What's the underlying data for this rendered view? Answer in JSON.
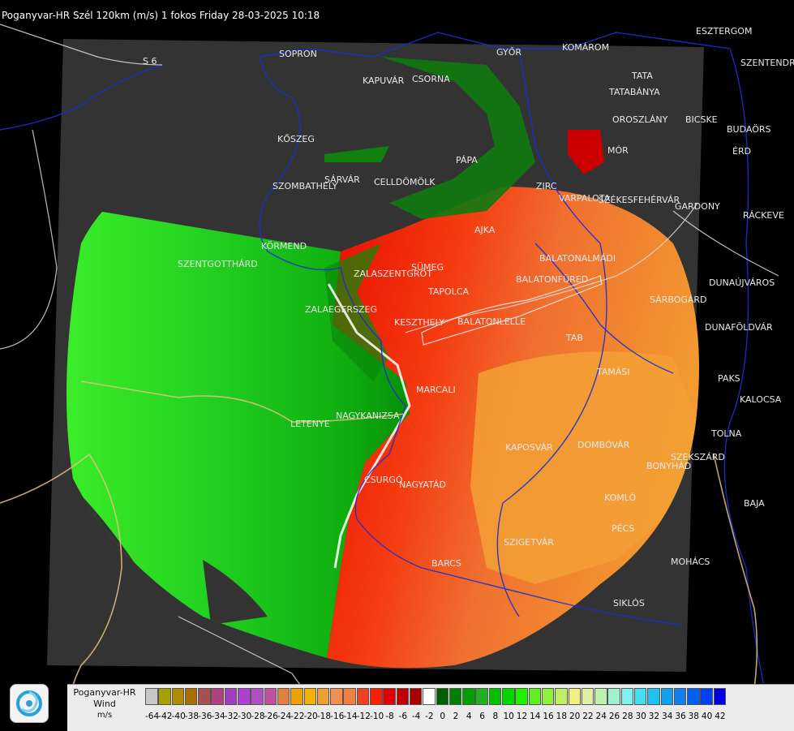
{
  "header": {
    "title": "Poganyvar-HR Szél 120km (m/s) 1 fokos Friday 28-03-2025 10:18"
  },
  "road_label": "S 6",
  "cities": [
    {
      "name": "SOPRON"
    },
    {
      "name": "KAPUVÁR"
    },
    {
      "name": "CSORNA"
    },
    {
      "name": "GYŐR"
    },
    {
      "name": "KOMÁROM"
    },
    {
      "name": "TATA"
    },
    {
      "name": "TATABÁNYA"
    },
    {
      "name": "ESZTERGOM"
    },
    {
      "name": "SZENTENDRE"
    },
    {
      "name": "BUDAÖRS"
    },
    {
      "name": "ÉRD"
    },
    {
      "name": "PÁPA"
    },
    {
      "name": "ZIRC"
    },
    {
      "name": "OROSZLÁNY"
    },
    {
      "name": "BICSKE"
    },
    {
      "name": "MÓR"
    },
    {
      "name": "KŐSZEG"
    },
    {
      "name": "SÁRVÁR"
    },
    {
      "name": "CELLDÖMÖLK"
    },
    {
      "name": "SZOMBATHELY"
    },
    {
      "name": "VARPALOTA"
    },
    {
      "name": "SZÉKESFEHÉRVÁR"
    },
    {
      "name": "GARDONY"
    },
    {
      "name": "RÁCKEVE"
    },
    {
      "name": "AJKA"
    },
    {
      "name": "KÖRMEND"
    },
    {
      "name": "SZENTGOTTHÁRD"
    },
    {
      "name": "ZALAEGERSZEG"
    },
    {
      "name": "ZALASZENTGRÓT"
    },
    {
      "name": "SÜMEG"
    },
    {
      "name": "TAPOLCA"
    },
    {
      "name": "BALATONALMÁDI"
    },
    {
      "name": "BALATONFÜRED"
    },
    {
      "name": "SÁRBOGÁRD"
    },
    {
      "name": "DUNAÚJVÁROS"
    },
    {
      "name": "DUNAFÖLDVÁR"
    },
    {
      "name": "KESZTHELY"
    },
    {
      "name": "BALATONLELLE"
    },
    {
      "name": "TAB"
    },
    {
      "name": "PAKS"
    },
    {
      "name": "TAMÁSI"
    },
    {
      "name": "KALOCSA"
    },
    {
      "name": "MARCALI"
    },
    {
      "name": "LETENYE"
    },
    {
      "name": "NAGYKANIZSA"
    },
    {
      "name": "TOLNA"
    },
    {
      "name": "KAPOSVÁR"
    },
    {
      "name": "DOMBÓVÁR"
    },
    {
      "name": "SZEKSZÁRD"
    },
    {
      "name": "BONYHÁD"
    },
    {
      "name": "CSURGÓ"
    },
    {
      "name": "NAGYATÁD"
    },
    {
      "name": "BAJA"
    },
    {
      "name": "KOMLÓ"
    },
    {
      "name": "PÉCS"
    },
    {
      "name": "SZIGETVÁR"
    },
    {
      "name": "BARCS"
    },
    {
      "name": "MOHÁCS"
    },
    {
      "name": "SIKLÓS"
    }
  ],
  "legend": {
    "title_line1": "Poganyvar-HR",
    "title_line2": "Wind",
    "unit": "m/s",
    "ticks": [
      "-64",
      "-42",
      "-40",
      "-38",
      "-36",
      "-34",
      "-32",
      "-30",
      "-28",
      "-26",
      "-24",
      "-22",
      "-20",
      "-18",
      "-16",
      "-14",
      "-12",
      "-10",
      "-8",
      "-6",
      "-4",
      "-2",
      "0",
      "2",
      "4",
      "6",
      "8",
      "10",
      "12",
      "14",
      "16",
      "18",
      "20",
      "22",
      "24",
      "26",
      "28",
      "30",
      "32",
      "34",
      "36",
      "38",
      "40",
      "42"
    ],
    "colors": [
      "#c8c8c8",
      "#a8a000",
      "#b08a00",
      "#a86e00",
      "#a85050",
      "#b04080",
      "#a040c0",
      "#b040d0",
      "#b050c0",
      "#c050a0",
      "#e08040",
      "#f0a000",
      "#f8b000",
      "#f0a030",
      "#f09050",
      "#f08040",
      "#f04020",
      "#f82000",
      "#e00000",
      "#c00000",
      "#a80000",
      "#ffffff",
      "#006000",
      "#008000",
      "#00a000",
      "#20b020",
      "#00c000",
      "#00d800",
      "#20f000",
      "#60f020",
      "#90f040",
      "#c0f060",
      "#f0f080",
      "#e0f0a0",
      "#c0f0b0",
      "#a0f0d0",
      "#80f0f0",
      "#40e0f0",
      "#20c0f0",
      "#10a0f0",
      "#1080f0",
      "#0060f0",
      "#0040f0",
      "#0000e0"
    ]
  },
  "colors": {
    "background": "#000000",
    "radar_frame": "#333333",
    "border_blue": "#1a2fd0",
    "road_tan": "#e8c080",
    "river_white": "#dddddd"
  }
}
